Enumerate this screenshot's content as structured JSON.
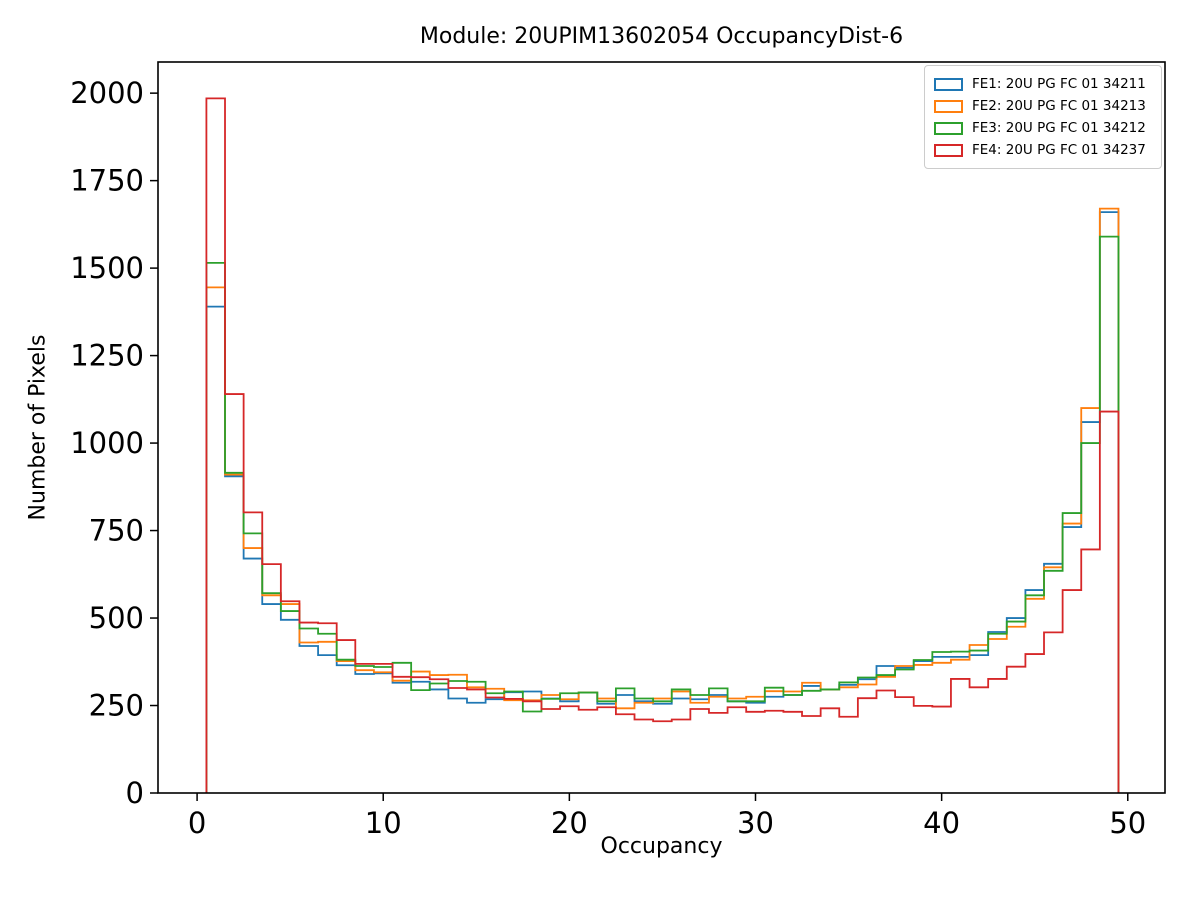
{
  "title": "Module: 20UPIM13602054 OccupancyDist-6",
  "chart_data": {
    "type": "step-histogram",
    "title": "Module: 20UPIM13602054 OccupancyDist-6",
    "xlabel": "Occupancy",
    "ylabel": "Number of Pixels",
    "xlim": [
      -2.1,
      52.0
    ],
    "ylim": [
      0,
      2089
    ],
    "x_ticks": [
      0,
      10,
      20,
      30,
      40,
      50
    ],
    "y_ticks": [
      0,
      250,
      500,
      750,
      1000,
      1250,
      1500,
      1750,
      2000
    ],
    "bin_start": 0.5,
    "bin_width": 1,
    "grid": false,
    "legend_position": "upper right",
    "series": [
      {
        "name": "FE1: 20U PG FC 01 34211",
        "color": "#1f77b4",
        "values": [
          1390,
          905,
          670,
          540,
          495,
          420,
          394,
          365,
          340,
          342,
          315,
          318,
          296,
          270,
          258,
          268,
          288,
          290,
          270,
          262,
          287,
          255,
          280,
          262,
          255,
          270,
          268,
          280,
          262,
          258,
          275,
          280,
          306,
          296,
          309,
          325,
          363,
          358,
          377,
          389,
          389,
          394,
          460,
          500,
          580,
          655,
          760,
          1060,
          1660
        ]
      },
      {
        "name": "FE2: 20U PG FC 01 34213",
        "color": "#ff7f0e",
        "values": [
          1445,
          910,
          700,
          565,
          540,
          430,
          432,
          377,
          351,
          345,
          321,
          347,
          337,
          338,
          302,
          298,
          265,
          265,
          280,
          268,
          287,
          270,
          242,
          258,
          270,
          290,
          258,
          275,
          270,
          275,
          291,
          290,
          315,
          296,
          302,
          310,
          332,
          363,
          366,
          372,
          381,
          423,
          440,
          475,
          555,
          645,
          770,
          1100,
          1670
        ]
      },
      {
        "name": "FE3: 20U PG FC 01 34212",
        "color": "#2ca02c",
        "values": [
          1515,
          915,
          742,
          571,
          520,
          470,
          455,
          381,
          363,
          360,
          372,
          294,
          313,
          320,
          318,
          285,
          290,
          233,
          269,
          285,
          287,
          262,
          299,
          270,
          262,
          296,
          280,
          299,
          262,
          262,
          301,
          280,
          292,
          296,
          316,
          330,
          337,
          353,
          380,
          403,
          404,
          407,
          455,
          490,
          565,
          635,
          800,
          1000,
          1590
        ]
      },
      {
        "name": "FE4: 20U PG FC 01 34237",
        "color": "#d62728",
        "values": [
          1985,
          1140,
          802,
          654,
          548,
          487,
          485,
          437,
          369,
          369,
          332,
          331,
          325,
          300,
          296,
          273,
          269,
          262,
          240,
          248,
          238,
          245,
          225,
          210,
          205,
          210,
          240,
          229,
          245,
          232,
          235,
          232,
          220,
          242,
          218,
          271,
          293,
          274,
          249,
          247,
          326,
          302,
          326,
          361,
          397,
          459,
          580,
          696,
          1090
        ]
      }
    ]
  }
}
